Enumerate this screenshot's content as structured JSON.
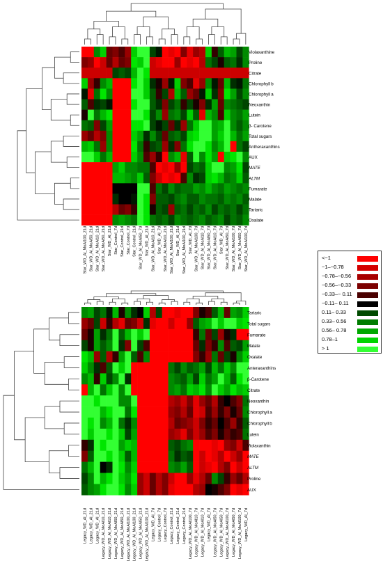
{
  "chart_data": [
    {
      "type": "heatmap",
      "rows": [
        "Violaxanthine",
        "Proline",
        "Citrate",
        "Chlorophyll b",
        "Chlorophyll a",
        "Neoxanthin",
        "Lutein",
        "β- Carotene",
        "Total sugars",
        "Antheraxanthins",
        "AUX",
        "MATE",
        "ALTM",
        "Fumarate",
        "Malate",
        "Tartaric",
        "Oxalate"
      ],
      "row_italic": [
        false,
        false,
        false,
        false,
        false,
        false,
        false,
        false,
        false,
        false,
        false,
        true,
        true,
        false,
        false,
        false,
        false
      ],
      "columns": [
        "Star_WD_Al_MoAl100_21d",
        "Star_WD_Al_MoAl50_21d",
        "Star_WD_Al_MoAl10_21d",
        "Star_WD_Al_MoAl50_21d",
        "Star_WD_Al_21d",
        "Star_Control_7d",
        "Star_Control_21d",
        "Star_Control_7d",
        "Star_Control_21d",
        "Star_WD_Al_MoAl50_7d",
        "Star_WD_Al_21d",
        "Star_WD_Al_MoAl10_21d",
        "Star_WD_Al_7d",
        "Star_WD_Al_MoAl10_21d",
        "Star_WD_Al_MoAl100_21d",
        "Star_WD_Al_21d",
        "Star_WD_Al_MoAl100_21d",
        "Star_WD_Al_7d",
        "Star_WD_Al_MoAl100_7d",
        "Star_WD_Al_MoAl10_7d",
        "Star_WD_Al_MoAl50_7d",
        "Star_WD_Al_MoAl10_7d",
        "Star_WD_Al_7d",
        "Star_WD_Al_MoAl50_7d",
        "Star_WD_Al_MoAl100_7d",
        "Star_WD_Al_MoAl50_7d",
        "Star_WD_Al_MoAl100_7d"
      ],
      "values": [
        [
          -1.2,
          -1.0,
          0.6,
          0.9,
          -0.4,
          -0.5,
          -0.3,
          -0.6,
          0.9,
          1.2,
          1.1,
          0.3,
          0.1,
          -1.1,
          -0.9,
          -1.0,
          -0.5,
          -0.9,
          -0.6,
          -0.7,
          0.9,
          -0.2,
          0.4,
          0.8,
          0.7,
          0.3,
          0.6
        ],
        [
          -0.5,
          -0.6,
          -1.1,
          -0.8,
          -0.4,
          -0.7,
          -0.4,
          -0.5,
          1.0,
          0.9,
          1.1,
          -0.8,
          -0.9,
          -1.0,
          -1.0,
          -0.6,
          -1.1,
          -0.9,
          -1.0,
          -0.7,
          0.5,
          0.3,
          -0.1,
          0.4,
          0.5,
          0.2,
          0.6
        ],
        [
          -0.8,
          -0.8,
          -0.8,
          -0.8,
          -0.8,
          0.3,
          0.4,
          0.3,
          0.8,
          1.1,
          1.0,
          -0.8,
          -0.8,
          -0.8,
          -0.8,
          -0.8,
          -0.8,
          -0.8,
          -0.8,
          -0.8,
          -0.8,
          -0.8,
          -0.8,
          -0.8,
          -0.8,
          -0.8,
          -0.8
        ],
        [
          0.9,
          -0.6,
          -0.2,
          0.6,
          0.8,
          -1.2,
          -1.1,
          -1.2,
          1.0,
          1.1,
          0.9,
          0.2,
          -0.1,
          -0.6,
          0.1,
          0.9,
          -0.5,
          -0.3,
          -0.9,
          -0.6,
          0.6,
          0.1,
          -0.4,
          0.8,
          0.2,
          0.1,
          0.5
        ],
        [
          0.1,
          -0.9,
          0.5,
          1.0,
          0.6,
          -1.1,
          -1.2,
          -1.1,
          1.1,
          1.2,
          0.9,
          0.4,
          -0.2,
          0.3,
          -0.7,
          0.8,
          0.4,
          -0.6,
          -0.4,
          0.1,
          0.9,
          0.2,
          -0.5,
          1.0,
          0.7,
          0.3,
          0.6
        ],
        [
          0.4,
          -0.3,
          0.2,
          0.3,
          0.1,
          -1.1,
          -1.1,
          -1.2,
          1.0,
          1.1,
          1.1,
          0.4,
          0.2,
          -0.5,
          0.3,
          0.5,
          -0.2,
          0.3,
          -0.1,
          -0.5,
          0.2,
          0.7,
          -0.4,
          0.6,
          0.5,
          0.4,
          0.3
        ],
        [
          -0.1,
          1.1,
          0.5,
          0.8,
          1.0,
          -1.1,
          -1.2,
          -1.1,
          1.1,
          1.1,
          1.0,
          0.3,
          0.6,
          -0.6,
          0.5,
          0.6,
          0.3,
          0.9,
          0.4,
          -0.9,
          0.8,
          0.6,
          -0.3,
          0.9,
          0.6,
          0.5,
          0.7
        ],
        [
          0.5,
          0.4,
          -0.5,
          0.3,
          0.7,
          -1.1,
          -1.2,
          -1.1,
          1.0,
          1.0,
          1.1,
          0.3,
          0.1,
          0.3,
          -0.4,
          0.2,
          -0.6,
          0.5,
          0.9,
          1.2,
          1.2,
          0.7,
          0.8,
          1.1,
          0.6,
          0.4,
          0.6
        ],
        [
          -0.6,
          -0.4,
          -0.7,
          -0.5,
          0.6,
          -1.1,
          -1.0,
          -1.2,
          0.9,
          0.7,
          0.2,
          0.6,
          0.3,
          -0.4,
          0.4,
          0.5,
          0.3,
          0.9,
          1.0,
          1.1,
          1.1,
          0.7,
          0.9,
          1.2,
          0.8,
          0.5,
          0.7
        ],
        [
          0.8,
          0.9,
          0.5,
          -0.6,
          0.6,
          -1.1,
          -1.1,
          -1.2,
          1.0,
          0.5,
          -0.2,
          0.3,
          0.4,
          -0.6,
          0.2,
          -0.5,
          0.5,
          1.0,
          1.2,
          1.1,
          1.0,
          0.6,
          0.8,
          1.1,
          -1.0,
          0.5,
          0.3
        ],
        [
          1.1,
          1.2,
          0.9,
          0.5,
          0.8,
          -1.1,
          -1.2,
          -1.1,
          0.9,
          0.6,
          -0.3,
          -0.6,
          -0.2,
          -1.0,
          0.6,
          0.8,
          -0.9,
          0.4,
          1.1,
          0.6,
          1.0,
          0.7,
          -1.0,
          0.9,
          1.0,
          1.1,
          0.6
        ],
        [
          -1.2,
          -1.1,
          -1.2,
          -1.1,
          -1.2,
          0.7,
          0.9,
          0.6,
          0.6,
          0.5,
          0.5,
          -0.3,
          -1.0,
          -0.9,
          -1.0,
          -0.6,
          -1.1,
          0.3,
          0.5,
          0.4,
          0.9,
          1.1,
          1.2,
          0.6,
          0.7,
          1.0,
          0.3
        ],
        [
          -1.2,
          -1.1,
          -1.2,
          -1.1,
          -1.2,
          0.8,
          0.8,
          0.7,
          0.6,
          0.9,
          0.4,
          -0.5,
          -0.8,
          -1.0,
          -0.9,
          -1.1,
          -0.3,
          0.6,
          0.2,
          0.3,
          0.9,
          1.0,
          0.8,
          0.5,
          0.6,
          0.9,
          0.4
        ],
        [
          -1.2,
          -1.1,
          -1.2,
          -1.2,
          -1.1,
          0.0,
          0.0,
          0.0,
          0.0,
          1.1,
          1.1,
          -0.3,
          0.5,
          0.3,
          0.6,
          0.4,
          0.5,
          0.5,
          0.7,
          0.6,
          0.8,
          0.6,
          0.5,
          0.7,
          0.6,
          0.5,
          0.6
        ],
        [
          -1.1,
          -1.2,
          -1.2,
          -1.1,
          -1.2,
          0.2,
          0.0,
          0.0,
          0.1,
          1.1,
          1.0,
          -0.5,
          0.4,
          0.4,
          0.3,
          0.5,
          0.6,
          0.4,
          0.4,
          0.6,
          0.5,
          0.5,
          0.4,
          0.6,
          0.5,
          0.6,
          0.4
        ],
        [
          -1.2,
          -1.1,
          -1.2,
          -1.2,
          -1.1,
          -0.7,
          -0.4,
          -0.5,
          -0.2,
          1.1,
          1.0,
          -0.1,
          0.4,
          0.3,
          -0.6,
          0.4,
          0.5,
          0.3,
          0.5,
          0.4,
          0.6,
          0.3,
          0.5,
          0.4,
          0.5,
          0.3,
          0.5
        ],
        [
          -1.2,
          -1.1,
          -1.2,
          -1.2,
          -1.1,
          0.6,
          0.7,
          0.6,
          0.5,
          1.1,
          1.0,
          0.5,
          0.4,
          0.5,
          0.3,
          0.6,
          0.5,
          0.4,
          0.5,
          0.6,
          0.4,
          0.5,
          0.6,
          0.3,
          0.5,
          0.4,
          0.6
        ]
      ]
    },
    {
      "type": "heatmap",
      "rows": [
        "Tartaric",
        "Total sugars",
        "Fumarate",
        "Malate",
        "Oxalate",
        "Anteraxanthins",
        "β-Carotene",
        "Citrate",
        "Neoxanthin",
        "Chlorophyll a",
        "Chlorophyll b",
        "Lutein",
        "Violaxanthin",
        "MATE",
        "ALTM",
        "Proline",
        "AUX"
      ],
      "row_italic": [
        false,
        false,
        false,
        false,
        false,
        false,
        false,
        false,
        false,
        false,
        false,
        false,
        false,
        true,
        true,
        false,
        false
      ],
      "columns": [
        "Legacy_WD_Al_21d",
        "Legacy_WD_Al_21d",
        "Legacy_WD_Al_21d",
        "Legacy_WD_Al_MoAl10_21d",
        "Legacy_WD_Al_MoAl10_21d",
        "Legacy_WD_Al_MoAl50_21d",
        "Legacy_WD_Al_MoAl50_21d",
        "Legacy_WD_Al_MoAl100_21d",
        "Legacy_WD_Al_MoAl100_21d",
        "Legacy_WD_Al_MoAl50_21d",
        "Legacy_WD_Al_MoAl100_21d",
        "Legacy_WD_Al_7d",
        "Legacy_Control_7d",
        "Legacy_Control_7d",
        "Legacy_Control_21d",
        "Legacy_Control_21d",
        "Legacy_Control_21d",
        "Legacy_WD_Al_MoAl100_7d",
        "Legacy_WD_Al_MoAl10_7d",
        "Legacy_WD_Al_MoAl10_7d",
        "Legacy_WD_Al_7d",
        "Legacy_WD_Al_MoAl50_7d",
        "Legacy_WD_Al_MoAl50_7d",
        "Legacy_WD_Al_MoAl100_7d",
        "Legacy_WD_Al_MoAl50_7d",
        "Legacy_WD_Al_MoAl100_7d",
        "Legacy_WD_Al_7d"
      ],
      "values": [
        [
          0.6,
          0.7,
          0.3,
          0.5,
          0.1,
          0.8,
          -0.1,
          0.6,
          0.2,
          0.0,
          0.9,
          -0.7,
          0.3,
          -1.1,
          -1.2,
          -0.9,
          -1.1,
          -1.0,
          -0.5,
          -0.1,
          -0.3,
          0.4,
          0.8,
          -0.4,
          0.7,
          0.6,
          0.9
        ],
        [
          -0.6,
          -0.4,
          0.3,
          -0.8,
          -0.2,
          -0.7,
          -0.9,
          -0.4,
          -0.5,
          -0.8,
          0.2,
          -0.9,
          -1.1,
          -1.2,
          -0.8,
          -1.1,
          -1.0,
          -0.6,
          0.4,
          0.7,
          0.8,
          1.1,
          0.9,
          1.1,
          1.2,
          0.9,
          1.0
        ],
        [
          -0.4,
          -0.1,
          0.7,
          0.2,
          0.5,
          1.1,
          0.4,
          0.8,
          1.2,
          0.9,
          1.1,
          -1.1,
          -1.2,
          -1.1,
          -1.2,
          -1.1,
          -1.2,
          -1.0,
          -0.2,
          0.5,
          -0.4,
          0.3,
          -0.6,
          -0.1,
          0.2,
          -1.1,
          -1.2
        ],
        [
          0.3,
          -0.1,
          0.7,
          0.4,
          0.6,
          1.1,
          0.2,
          -0.5,
          1.1,
          0.3,
          -0.3,
          -1.2,
          -1.1,
          -1.2,
          -1.1,
          -1.2,
          -1.1,
          -1.0,
          -0.4,
          0.2,
          -0.5,
          -0.2,
          0.6,
          -0.3,
          0.4,
          0.3,
          0.7
        ],
        [
          1.0,
          0.8,
          -0.6,
          0.4,
          -0.7,
          -0.2,
          0.7,
          1.1,
          0.4,
          -0.3,
          0.6,
          -1.1,
          -1.2,
          -1.1,
          -1.2,
          -1.1,
          -1.2,
          -1.1,
          -0.5,
          -0.2,
          -0.6,
          0.5,
          -0.4,
          0.3,
          -0.1,
          0.6,
          0.9
        ],
        [
          0.9,
          0.6,
          0.2,
          -0.3,
          0.4,
          1.2,
          0.9,
          1.1,
          -1.1,
          -1.2,
          -1.1,
          -1.2,
          -1.1,
          -1.2,
          0.5,
          0.3,
          0.6,
          0.4,
          0.5,
          0.7,
          0.3,
          0.8,
          0.5,
          0.9,
          0.6,
          1.2,
          1.1
        ],
        [
          0.6,
          0.8,
          -0.2,
          0.9,
          0.3,
          0.6,
          1.1,
          0.2,
          -1.1,
          -1.2,
          -1.1,
          -1.2,
          -1.1,
          -1.2,
          0.6,
          0.5,
          0.4,
          0.7,
          0.3,
          0.9,
          0.5,
          0.7,
          1.1,
          0.8,
          0.4,
          1.0,
          1.2
        ],
        [
          -1.2,
          0.8,
          1.1,
          0.5,
          0.9,
          1.2,
          0.6,
          1.1,
          -1.1,
          -1.2,
          -1.1,
          -1.2,
          -1.1,
          -1.2,
          0.6,
          0.7,
          0.5,
          0.9,
          0.8,
          1.0,
          0.6,
          1.1,
          0.9,
          0.7,
          1.0,
          0.8,
          0.9
        ],
        [
          1.1,
          1.2,
          1.0,
          1.1,
          1.2,
          1.1,
          0.6,
          0.6,
          1.1,
          -1.0,
          -1.1,
          -1.2,
          -1.1,
          -1.2,
          -0.7,
          -0.6,
          -0.8,
          -0.5,
          -0.9,
          -0.6,
          -0.4,
          -0.7,
          -0.2,
          0.0,
          -0.3,
          -0.5,
          0.5
        ],
        [
          1.1,
          1.2,
          1.1,
          0.8,
          1.0,
          1.1,
          1.2,
          0.5,
          1.0,
          -1.1,
          -1.2,
          -1.1,
          -1.2,
          -1.1,
          -0.6,
          -0.5,
          -0.7,
          -0.4,
          -0.9,
          -0.8,
          -0.3,
          -0.6,
          -0.2,
          -0.5,
          -0.1,
          -0.4,
          0.6
        ],
        [
          1.1,
          1.0,
          1.1,
          0.6,
          0.8,
          1.1,
          0.5,
          0.2,
          0.6,
          -1.0,
          -1.1,
          -1.2,
          -1.1,
          -1.2,
          -0.7,
          -0.4,
          -0.5,
          -0.6,
          -0.8,
          -0.5,
          -0.2,
          -0.4,
          0.0,
          -0.3,
          -0.6,
          -0.2,
          0.4
        ],
        [
          1.1,
          0.9,
          1.2,
          1.1,
          1.0,
          1.1,
          0.9,
          0.3,
          0.7,
          -1.1,
          -1.2,
          -1.1,
          -1.2,
          -1.1,
          -0.6,
          -0.7,
          -0.9,
          -0.5,
          -0.8,
          -0.6,
          -0.3,
          -0.5,
          -0.1,
          -0.4,
          -0.2,
          -0.3,
          0.5
        ],
        [
          -0.2,
          0.2,
          1.1,
          1.0,
          1.2,
          1.1,
          0.7,
          0.9,
          0.8,
          -1.1,
          -1.2,
          -1.1,
          -1.2,
          -1.1,
          0.4,
          0.3,
          0.5,
          0.6,
          -1.1,
          -1.2,
          -1.1,
          -0.9,
          -1.0,
          -0.6,
          -0.5,
          -0.8,
          -0.3
        ],
        [
          -0.5,
          0.4,
          1.2,
          1.1,
          1.0,
          1.2,
          0.9,
          0.4,
          0.8,
          -1.1,
          -1.2,
          -1.1,
          -1.2,
          -1.1,
          0.5,
          0.2,
          0.4,
          0.3,
          -1.0,
          -0.8,
          -1.1,
          -0.9,
          -0.7,
          -1.0,
          -0.8,
          -0.6,
          -1.1
        ],
        [
          0.5,
          0.8,
          1.1,
          0.0,
          0.2,
          1.1,
          1.0,
          0.6,
          0.9,
          -1.1,
          -1.2,
          -1.1,
          -1.2,
          -1.1,
          0.6,
          0.5,
          0.7,
          0.4,
          -1.1,
          -0.8,
          -0.9,
          -1.0,
          -0.7,
          -0.5,
          -1.1,
          -0.8,
          -1.0
        ],
        [
          0.3,
          0.6,
          1.1,
          0.8,
          1.0,
          1.2,
          0.9,
          0.7,
          1.0,
          -0.6,
          -0.8,
          -0.4,
          -0.7,
          -0.5,
          -0.8,
          -1.0,
          -1.1,
          -0.6,
          -0.9,
          -0.7,
          -0.4,
          0.6,
          0.3,
          -0.2,
          -0.6,
          -0.4,
          -0.7
        ],
        [
          0.4,
          0.6,
          0.7,
          1.0,
          1.1,
          1.2,
          1.0,
          0.6,
          0.9,
          -0.6,
          -0.8,
          -0.4,
          -0.7,
          -0.5,
          -0.9,
          -1.0,
          -1.2,
          -1.1,
          -0.7,
          -0.6,
          0.0,
          -0.1,
          -0.3,
          -0.5,
          -1.1,
          -0.9,
          -1.2
        ]
      ]
    }
  ],
  "legend": {
    "items": [
      {
        "label": "<−1",
        "color": "#ff0000"
      },
      {
        "label": "−1–−0.78",
        "color": "#d40000"
      },
      {
        "label": "−0.78–−0.56",
        "color": "#a80000"
      },
      {
        "label": "−0.56–−0.33",
        "color": "#7c0000"
      },
      {
        "label": "−0.33–− 0.11",
        "color": "#4a0000"
      },
      {
        "label": "−0.11– 0.11",
        "color": "#000000"
      },
      {
        "label": "0.11– 0.33",
        "color": "#004a00"
      },
      {
        "label": "0.33– 0.56",
        "color": "#007c00"
      },
      {
        "label": "0.56– 0.78",
        "color": "#00a800"
      },
      {
        "label": "0.78–1",
        "color": "#00d400"
      },
      {
        "label": "> 1",
        "color": "#33ff33"
      }
    ]
  }
}
